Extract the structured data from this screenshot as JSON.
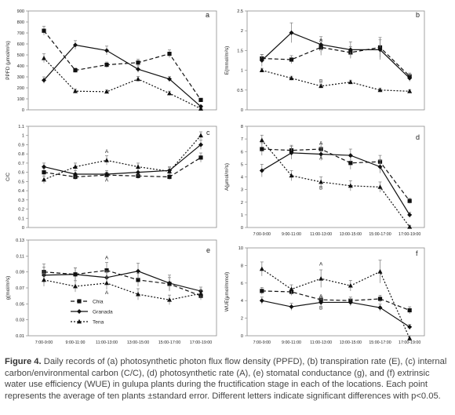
{
  "chart_data": [
    {
      "type": "line",
      "panel": "a",
      "ylabel": "PPFD (μmol/m²s)",
      "ylim": [
        0,
        900
      ],
      "yticks": [
        "0",
        "100",
        "200",
        "300",
        "400",
        "500",
        "600",
        "700",
        "800",
        "900"
      ],
      "x_tick_labels": [],
      "series": [
        {
          "name": "Chia",
          "values": [
            720,
            360,
            410,
            430,
            510,
            90
          ],
          "errors": [
            40,
            20,
            25,
            30,
            35,
            15
          ]
        },
        {
          "name": "Granada",
          "values": [
            270,
            590,
            540,
            370,
            280,
            30
          ],
          "errors": [
            30,
            40,
            40,
            30,
            25,
            10
          ]
        },
        {
          "name": "Tena",
          "values": [
            470,
            170,
            165,
            280,
            150,
            10
          ],
          "errors": [
            40,
            20,
            15,
            25,
            20,
            5
          ]
        }
      ],
      "annotations": []
    },
    {
      "type": "line",
      "panel": "b",
      "ylabel": "E(mmol/m²s)",
      "ylim": [
        0,
        2.5
      ],
      "yticks": [
        "0",
        "0.5",
        "1",
        "1.5",
        "2",
        "2.5"
      ],
      "x_tick_labels": [],
      "series": [
        {
          "name": "Chia",
          "values": [
            1.3,
            1.27,
            1.58,
            1.45,
            1.58,
            0.85
          ],
          "errors": [
            0.1,
            0.1,
            0.2,
            0.15,
            0.25,
            0.08
          ]
        },
        {
          "name": "Granada",
          "values": [
            1.25,
            1.95,
            1.65,
            1.52,
            1.52,
            0.8
          ],
          "errors": [
            0.15,
            0.25,
            0.2,
            0.2,
            0.25,
            0.08
          ]
        },
        {
          "name": "Tena",
          "values": [
            1.0,
            0.8,
            0.6,
            0.7,
            0.5,
            0.47
          ],
          "errors": [
            0.05,
            0.05,
            0.05,
            0.05,
            0.05,
            0.04
          ]
        }
      ],
      "annotations": [
        {
          "text": "A",
          "x": 2,
          "y": 1.72
        },
        {
          "text": "A",
          "x": 2,
          "y": 1.5
        },
        {
          "text": "B",
          "x": 2,
          "y": 0.68
        }
      ]
    },
    {
      "type": "line",
      "panel": "c",
      "ylabel": "C/C",
      "ylim": [
        0,
        1.1
      ],
      "yticks": [
        "0",
        "0.1",
        "0.2",
        "0.3",
        "0.4",
        "0.5",
        "0.6",
        "0.7",
        "0.8",
        "0.9",
        "1",
        "1.1"
      ],
      "x_tick_labels": [],
      "series": [
        {
          "name": "Chia",
          "values": [
            0.6,
            0.55,
            0.57,
            0.56,
            0.55,
            0.76
          ],
          "errors": [
            0.04,
            0.03,
            0.03,
            0.03,
            0.03,
            0.05
          ]
        },
        {
          "name": "Granada",
          "values": [
            0.66,
            0.58,
            0.58,
            0.6,
            0.62,
            0.9
          ],
          "errors": [
            0.04,
            0.04,
            0.04,
            0.04,
            0.04,
            0.05
          ]
        },
        {
          "name": "Tena",
          "values": [
            0.52,
            0.66,
            0.73,
            0.66,
            0.61,
            1.0
          ],
          "errors": [
            0.04,
            0.04,
            0.05,
            0.04,
            0.04,
            0.04
          ]
        }
      ],
      "annotations": [
        {
          "text": "A",
          "x": 2,
          "y": 0.81
        },
        {
          "text": "A",
          "x": 2,
          "y": 0.5
        }
      ]
    },
    {
      "type": "line",
      "panel": "d",
      "ylabel": "A(μmol/m²s)",
      "ylim": [
        0,
        8
      ],
      "yticks": [
        "0",
        "1",
        "2",
        "3",
        "4",
        "5",
        "6",
        "7",
        "8"
      ],
      "x_tick_labels": [
        "7:00-9:00",
        "9:00-11:00",
        "11:00-13:00",
        "13:00-15:00",
        "15:00-17:00",
        "17:00-19:00"
      ],
      "series": [
        {
          "name": "Chia",
          "values": [
            6.2,
            6.1,
            6.2,
            5.1,
            5.2,
            2.1
          ],
          "errors": [
            0.5,
            0.4,
            0.4,
            0.5,
            0.5,
            0.2
          ]
        },
        {
          "name": "Granada",
          "values": [
            4.5,
            5.9,
            5.8,
            5.7,
            4.8,
            1.0
          ],
          "errors": [
            0.5,
            0.5,
            0.5,
            0.5,
            0.5,
            0.2
          ]
        },
        {
          "name": "Tena",
          "values": [
            6.9,
            4.1,
            3.6,
            3.3,
            3.2,
            0.05
          ],
          "errors": [
            0.4,
            0.4,
            0.4,
            0.4,
            0.4,
            0.1
          ]
        }
      ],
      "annotations": [
        {
          "text": "A",
          "x": 2,
          "y": 6.55
        },
        {
          "text": "A",
          "x": 2,
          "y": 5.35
        },
        {
          "text": "B",
          "x": 2,
          "y": 3.0
        }
      ]
    },
    {
      "type": "line",
      "panel": "e",
      "ylabel": "g(mol/m²s)",
      "ylim": [
        0.01,
        0.13
      ],
      "yticks": [
        "0.01",
        "0.03",
        "0.05",
        "0.07",
        "0.09",
        "0.11",
        "0.13"
      ],
      "x_tick_labels": [
        "7:00-9:00",
        "9:00-11:00",
        "11:00-13:00",
        "13:00-15:00",
        "15:00-17:00",
        "17:00-19:00"
      ],
      "series": [
        {
          "name": "Chia",
          "values": [
            0.09,
            0.087,
            0.092,
            0.08,
            0.075,
            0.06
          ],
          "errors": [
            0.01,
            0.008,
            0.01,
            0.008,
            0.008,
            0.005
          ]
        },
        {
          "name": "Granada",
          "values": [
            0.086,
            0.087,
            0.083,
            0.091,
            0.076,
            0.066
          ],
          "errors": [
            0.01,
            0.008,
            0.008,
            0.01,
            0.01,
            0.005
          ]
        },
        {
          "name": "Tena",
          "values": [
            0.08,
            0.072,
            0.076,
            0.062,
            0.055,
            0.063
          ],
          "errors": [
            0.008,
            0.007,
            0.008,
            0.007,
            0.006,
            0.005
          ]
        }
      ],
      "annotations": [
        {
          "text": "A",
          "x": 2,
          "y": 0.106
        },
        {
          "text": "A",
          "x": 2,
          "y": 0.062
        }
      ]
    },
    {
      "type": "line",
      "panel": "f",
      "ylabel": "WUE(μmol/mmol)",
      "ylim": [
        0,
        10
      ],
      "yticks": [
        "0",
        "2",
        "4",
        "6",
        "8",
        "10"
      ],
      "x_tick_labels": [
        "7:00-9:00",
        "9:00-11:00",
        "11:00-13:00",
        "13:00-15:00",
        "15:00-17:00",
        "17:00-19:00"
      ],
      "series": [
        {
          "name": "Chia",
          "values": [
            5.1,
            5.0,
            4.1,
            4.0,
            4.2,
            2.9
          ],
          "errors": [
            0.4,
            0.4,
            0.4,
            0.4,
            0.4,
            0.4
          ]
        },
        {
          "name": "Granada",
          "values": [
            4.0,
            3.3,
            3.8,
            3.8,
            3.2,
            1.0
          ],
          "errors": [
            0.4,
            0.4,
            0.4,
            0.4,
            0.4,
            0.3
          ]
        },
        {
          "name": "Tena",
          "values": [
            7.6,
            5.3,
            6.5,
            5.7,
            7.3,
            -0.3
          ],
          "errors": [
            0.8,
            0.5,
            1.0,
            0.6,
            1.3,
            0.3
          ]
        }
      ],
      "annotations": [
        {
          "text": "A",
          "x": 2,
          "y": 8.0
        },
        {
          "text": "A",
          "x": 2,
          "y": 4.35
        },
        {
          "text": "B",
          "x": 2,
          "y": 3.0
        }
      ]
    }
  ],
  "legend": {
    "panel": "e",
    "placement": "bottom-left",
    "entries": [
      "Chia",
      "Granada",
      "Tena"
    ]
  },
  "caption": {
    "label": "Figure 4.",
    "text": "Daily records of (a) photosynthetic photon flux flow density (PPFD), (b) transpiration rate (E), (c) internal carbon/environmental carbon (C/C), (d) photosynthetic rate (A), (e) stomatal conductance (g), and (f) extrinsic water use efficiency (WUE) in gulupa plants during the fructification stage in each of the locations. Each point represents the average of ten plants ±standard error. Different letters indicate significant differences with p<0.05."
  }
}
